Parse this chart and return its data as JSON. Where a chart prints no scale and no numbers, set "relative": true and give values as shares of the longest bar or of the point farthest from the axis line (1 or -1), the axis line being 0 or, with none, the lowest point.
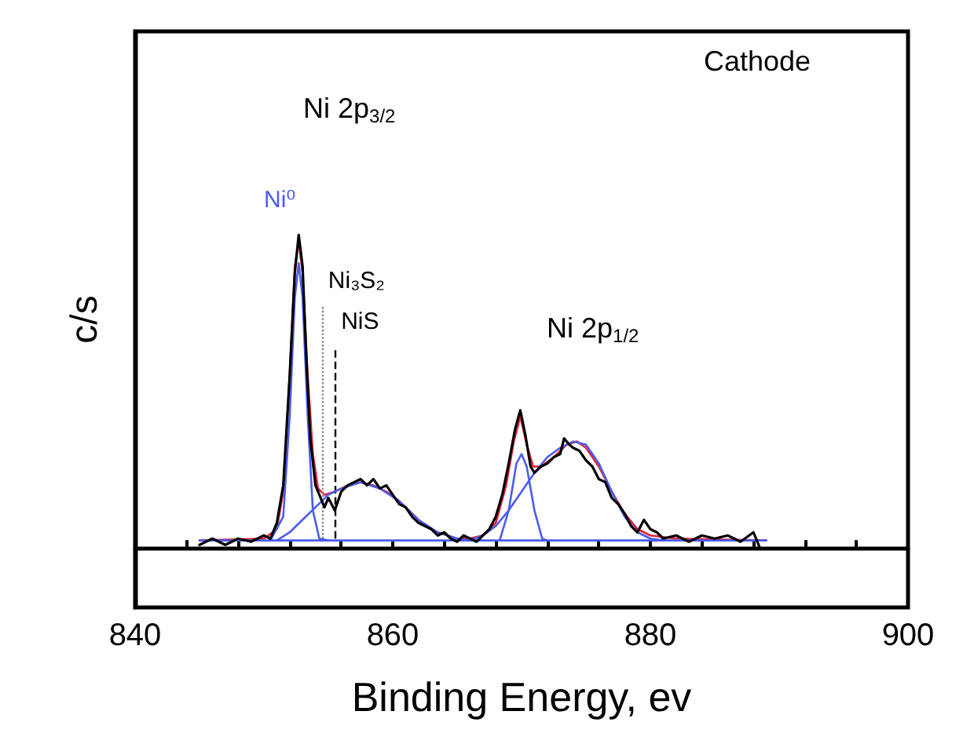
{
  "chart_data": {
    "type": "line",
    "relative": true,
    "xlabel": "Binding Energy, ev",
    "ylabel": "c/s",
    "xlim": [
      840,
      900
    ],
    "xticks": [
      840,
      {
        "value": 844,
        "label": null
      },
      {
        "value": 848,
        "label": null
      },
      {
        "value": 852,
        "label": null
      },
      {
        "value": 856,
        "label": null
      },
      860,
      {
        "value": 864,
        "label": null
      },
      {
        "value": 868,
        "label": null
      },
      {
        "value": 872,
        "label": null
      },
      {
        "value": 876,
        "label": null
      },
      880,
      {
        "value": 884,
        "label": null
      },
      {
        "value": 888,
        "label": null
      },
      {
        "value": 892,
        "label": null
      },
      {
        "value": 896,
        "label": null
      },
      900
    ],
    "grid": false,
    "marker": "none",
    "line_style": "solid",
    "series": [
      {
        "color": "#000000",
        "x": [
          845,
          846,
          847,
          848,
          849,
          850,
          850.5,
          851,
          851.5,
          852,
          852.4,
          852.7,
          853,
          853.3,
          853.6,
          854,
          854.3,
          854.7,
          855,
          855.5,
          856,
          856.5,
          857,
          857.5,
          858,
          858.5,
          859,
          859.5,
          860,
          860.5,
          861,
          861.5,
          862,
          862.5,
          863,
          863.5,
          864,
          864.5,
          865,
          865.5,
          866,
          866.5,
          867,
          867.5,
          868,
          868.5,
          869,
          869.5,
          869.9,
          870.3,
          870.7,
          871,
          871.5,
          872,
          872.5,
          873,
          873.3,
          873.7,
          874,
          874.5,
          875,
          875.5,
          876,
          876.5,
          877,
          877.5,
          878,
          878.5,
          879,
          879.5,
          880,
          880.5,
          881,
          882,
          883,
          884,
          885,
          886,
          887,
          888,
          888.5
        ],
        "values": [
          0.01,
          0.03,
          0.01,
          0.03,
          0.02,
          0.04,
          0.03,
          0.08,
          0.2,
          0.55,
          0.88,
          1,
          0.9,
          0.6,
          0.35,
          0.2,
          0.17,
          0.13,
          0.16,
          0.12,
          0.18,
          0.2,
          0.21,
          0.22,
          0.2,
          0.22,
          0.19,
          0.2,
          0.17,
          0.14,
          0.13,
          0.1,
          0.08,
          0.07,
          0.06,
          0.04,
          0.05,
          0.03,
          0.02,
          0.04,
          0.03,
          0.02,
          0.04,
          0.06,
          0.1,
          0.17,
          0.27,
          0.38,
          0.44,
          0.36,
          0.26,
          0.24,
          0.26,
          0.27,
          0.29,
          0.3,
          0.35,
          0.33,
          0.32,
          0.31,
          0.28,
          0.26,
          0.22,
          0.21,
          0.16,
          0.14,
          0.11,
          0.07,
          0.05,
          0.09,
          0.06,
          0.05,
          0.03,
          0.04,
          0.02,
          0.04,
          0.03,
          0.04,
          0.02,
          0.05,
          0
        ]
      },
      {
        "color": "#e8203a",
        "x": [
          845,
          850,
          851,
          851.5,
          852,
          852.4,
          852.7,
          853,
          853.4,
          853.8,
          854.2,
          854.7,
          855.5,
          856.5,
          857.5,
          858.5,
          859.5,
          860.5,
          861.5,
          862.5,
          863.5,
          865,
          866,
          867,
          868,
          868.8,
          869.4,
          869.9,
          870.4,
          870.9,
          871.5,
          872.5,
          873.5,
          874.3,
          875,
          876,
          877,
          878,
          879,
          880,
          882,
          889
        ],
        "values": [
          0.024,
          0.03,
          0.06,
          0.18,
          0.55,
          0.9,
          0.98,
          0.88,
          0.55,
          0.3,
          0.19,
          0.17,
          0.18,
          0.2,
          0.21,
          0.2,
          0.18,
          0.15,
          0.11,
          0.07,
          0.05,
          0.03,
          0.03,
          0.04,
          0.08,
          0.2,
          0.34,
          0.42,
          0.33,
          0.26,
          0.26,
          0.29,
          0.33,
          0.34,
          0.32,
          0.26,
          0.18,
          0.11,
          0.06,
          0.04,
          0.03,
          0.024
        ]
      },
      {
        "color": "#4a5cf0",
        "x": [
          850.5,
          851.5,
          852,
          852.4,
          852.7,
          853,
          853.4,
          853.8,
          854.3,
          855
        ],
        "values": [
          0.024,
          0.1,
          0.42,
          0.8,
          0.91,
          0.8,
          0.42,
          0.12,
          0.03,
          0.024
        ]
      },
      {
        "color": "#4a5cf0",
        "x": [
          851,
          852,
          853,
          854,
          855,
          856,
          857.5,
          859,
          860.5,
          862,
          863.5,
          865,
          866
        ],
        "values": [
          0.024,
          0.05,
          0.09,
          0.13,
          0.17,
          0.19,
          0.21,
          0.19,
          0.15,
          0.09,
          0.05,
          0.03,
          0.024
        ]
      },
      {
        "color": "#4a5cf0",
        "x": [
          868.3,
          869,
          869.6,
          870,
          870.4,
          871,
          871.6,
          872
        ],
        "values": [
          0.024,
          0.12,
          0.27,
          0.3,
          0.26,
          0.12,
          0.03,
          0.024
        ]
      },
      {
        "color": "#4a5cf0",
        "x": [
          866,
          867,
          868,
          869,
          870,
          871,
          872,
          873,
          874,
          875,
          876,
          877,
          878,
          879,
          880,
          881
        ],
        "values": [
          0.024,
          0.04,
          0.07,
          0.12,
          0.18,
          0.24,
          0.29,
          0.32,
          0.34,
          0.33,
          0.27,
          0.18,
          0.1,
          0.05,
          0.03,
          0.024
        ]
      },
      {
        "color": "#4a5cf0",
        "x": [
          845,
          889
        ],
        "values": [
          0.024,
          0.024
        ]
      }
    ],
    "ref_lines": [
      {
        "axis": "x",
        "value": 854.5,
        "label": "Ni₃S₂",
        "color": "#888888",
        "line_style": "dotted"
      },
      {
        "axis": "x",
        "value": 855.5,
        "label": "NiS",
        "color": "#000000",
        "line_style": "dashed"
      }
    ],
    "annotations": [
      "Ni⁰",
      "Ni 2p$_{3/2}$",
      "Ni 2p$_{1/2}$",
      "Cathode"
    ]
  }
}
